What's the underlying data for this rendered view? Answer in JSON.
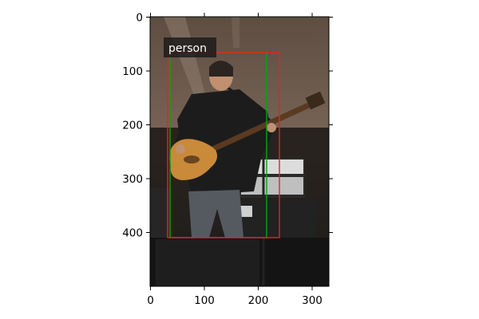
{
  "x_ticks": [
    "0",
    "100",
    "200",
    "300"
  ],
  "y_ticks": [
    "0",
    "100",
    "200",
    "300",
    "400"
  ],
  "detection": {
    "label": "person"
  },
  "boxes": [
    {
      "name": "ground-truth-box",
      "color": "#00aa00"
    },
    {
      "name": "prediction-box",
      "color": "#ee2020"
    }
  ],
  "scene": {
    "wall_color": "#6b5a4c",
    "shirt_color": "#1c1c1c",
    "jeans_color": "#555a60",
    "guitar_body_color": "#c98a3a",
    "stage_floor_color": "#141414"
  }
}
